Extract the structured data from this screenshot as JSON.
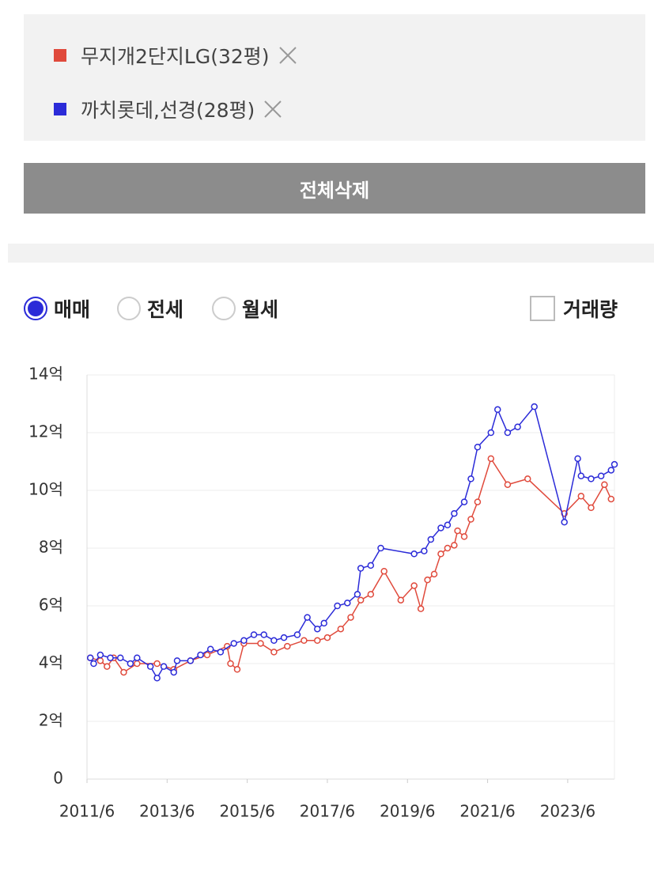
{
  "delete_all_button": "전체삭제",
  "tabs": [
    "매매",
    "전세",
    "월세"
  ],
  "selected_tab": 0,
  "volume_checkbox": {
    "label": "거래량",
    "checked": false
  },
  "chart_data": {
    "type": "line",
    "xlim": [
      "2011/6",
      "2024/8"
    ],
    "xticks": [
      "2011/6",
      "2013/6",
      "2015/6",
      "2017/6",
      "2019/6",
      "2021/6",
      "2023/6"
    ],
    "ylim": [
      0,
      14
    ],
    "yticks": [
      0,
      {
        "value": 2,
        "label": "2억"
      },
      {
        "value": 4,
        "label": "4억"
      },
      {
        "value": 6,
        "label": "6억"
      },
      {
        "value": 8,
        "label": "8억"
      },
      {
        "value": 10,
        "label": "10억"
      },
      {
        "value": 12,
        "label": "12억"
      },
      {
        "value": 14,
        "label": "14억"
      }
    ],
    "grid": true,
    "series": [
      {
        "name": "무지개2단지LG(32평)",
        "color": "#e04a3c",
        "x": [
          "2011/7",
          "2011/10",
          "2011/12",
          "2012/2",
          "2012/5",
          "2012/9",
          "2013/3",
          "2013/8",
          "2014/1",
          "2014/6",
          "2014/12",
          "2015/1",
          "2015/3",
          "2015/5",
          "2015/10",
          "2016/2",
          "2016/6",
          "2016/11",
          "2017/3",
          "2017/6",
          "2017/10",
          "2018/1",
          "2018/4",
          "2018/7",
          "2018/11",
          "2019/4",
          "2019/8",
          "2019/10",
          "2019/12",
          "2020/2",
          "2020/4",
          "2020/6",
          "2020/8",
          "2020/9",
          "2020/11",
          "2021/1",
          "2021/3",
          "2021/7",
          "2021/12",
          "2022/6",
          "2023/5",
          "2023/10",
          "2024/1",
          "2024/5",
          "2024/7"
        ],
        "values": [
          4.2,
          4.1,
          3.9,
          4.2,
          3.7,
          4.0,
          4.0,
          3.8,
          4.1,
          4.3,
          4.6,
          4.0,
          3.8,
          4.7,
          4.7,
          4.4,
          4.6,
          4.8,
          4.8,
          4.9,
          5.2,
          5.6,
          6.2,
          6.4,
          7.2,
          6.2,
          6.7,
          5.9,
          6.9,
          7.1,
          7.8,
          8.0,
          8.1,
          8.6,
          8.4,
          9.0,
          9.6,
          11.1,
          10.2,
          10.4,
          9.2,
          9.8,
          9.4,
          10.2,
          9.7
        ]
      },
      {
        "name": "까치롯데,선경(28평)",
        "color": "#2b2bd8",
        "x": [
          "2011/7",
          "2011/8",
          "2011/10",
          "2012/1",
          "2012/4",
          "2012/7",
          "2012/9",
          "2013/1",
          "2013/3",
          "2013/5",
          "2013/8",
          "2013/9",
          "2014/1",
          "2014/4",
          "2014/7",
          "2014/10",
          "2015/2",
          "2015/5",
          "2015/8",
          "2015/11",
          "2016/2",
          "2016/5",
          "2016/9",
          "2016/12",
          "2017/3",
          "2017/5",
          "2017/9",
          "2017/12",
          "2018/3",
          "2018/4",
          "2018/7",
          "2018/10",
          "2019/8",
          "2019/11",
          "2020/1",
          "2020/4",
          "2020/6",
          "2020/8",
          "2020/11",
          "2021/1",
          "2021/3",
          "2021/7",
          "2021/9",
          "2021/12",
          "2022/3",
          "2022/8",
          "2023/5",
          "2023/9",
          "2023/10",
          "2024/1",
          "2024/4",
          "2024/7",
          "2024/8"
        ],
        "values": [
          4.2,
          4.0,
          4.3,
          4.2,
          4.2,
          4.0,
          4.2,
          3.9,
          3.5,
          3.9,
          3.7,
          4.1,
          4.1,
          4.3,
          4.5,
          4.4,
          4.7,
          4.8,
          5.0,
          5.0,
          4.8,
          4.9,
          5.0,
          5.6,
          5.2,
          5.4,
          6.0,
          6.1,
          6.4,
          7.3,
          7.4,
          8.0,
          7.8,
          7.9,
          8.3,
          8.7,
          8.8,
          9.2,
          9.6,
          10.4,
          11.5,
          12.0,
          12.8,
          12.0,
          12.2,
          12.9,
          8.9,
          11.1,
          10.5,
          10.4,
          10.5,
          10.7,
          10.9
        ]
      }
    ]
  }
}
